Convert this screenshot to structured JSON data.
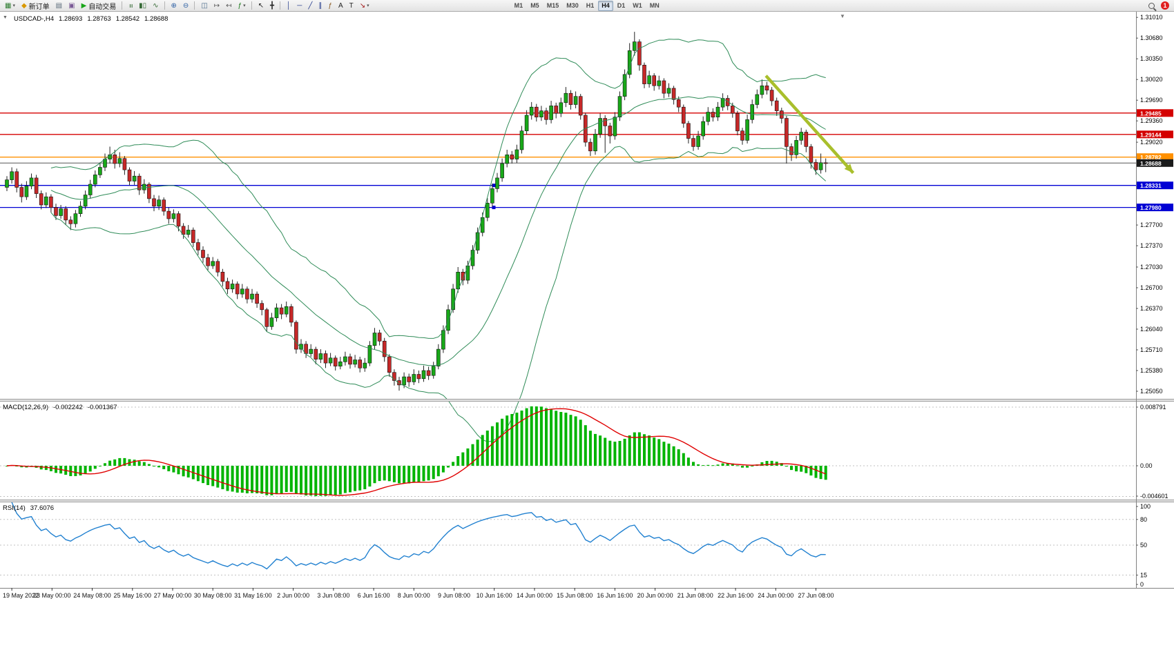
{
  "toolbar": {
    "items": [
      {
        "name": "new-chart",
        "glyph": "▦",
        "color": "#2f7d32",
        "caret": true
      },
      {
        "name": "new-order",
        "glyph": "◆",
        "color": "#d99800",
        "label": "新订单"
      },
      {
        "name": "print",
        "glyph": "▤",
        "color": "#5a6b7a"
      },
      {
        "name": "profile",
        "glyph": "▣",
        "color": "#7a5a96"
      },
      {
        "name": "autotrade",
        "glyph": "▶",
        "color": "#19a519",
        "label": "自动交易"
      },
      {
        "type": "sep"
      },
      {
        "name": "chart-bars",
        "glyph": "≡",
        "rot": true,
        "color": "#356a35"
      },
      {
        "name": "chart-candles",
        "glyph": "▮▯",
        "color": "#356a35"
      },
      {
        "name": "chart-line",
        "glyph": "∿",
        "color": "#356a35"
      },
      {
        "type": "sep"
      },
      {
        "name": "zoom-in",
        "glyph": "⊕",
        "color": "#2b5fa3"
      },
      {
        "name": "zoom-out",
        "glyph": "⊖",
        "color": "#2b5fa3"
      },
      {
        "type": "sep"
      },
      {
        "name": "tile-windows",
        "glyph": "◫",
        "color": "#4a6b8a"
      },
      {
        "name": "auto-scroll",
        "glyph": "↦",
        "color": "#555555"
      },
      {
        "name": "chart-shift",
        "glyph": "↤",
        "color": "#555555"
      },
      {
        "name": "indicators",
        "glyph": "ƒ",
        "color": "#1a7a1a",
        "caret": true
      },
      {
        "type": "sep"
      },
      {
        "name": "cursor",
        "glyph": "↖",
        "color": "#222222"
      },
      {
        "name": "crosshair",
        "glyph": "╋",
        "color": "#222222"
      },
      {
        "type": "sep"
      },
      {
        "name": "vertical-line",
        "glyph": "│",
        "color": "#20388a"
      },
      {
        "name": "horizontal-line",
        "glyph": "─",
        "color": "#20388a"
      },
      {
        "name": "trendline",
        "glyph": "╱",
        "color": "#20388a"
      },
      {
        "name": "channel",
        "glyph": "∥",
        "color": "#20388a"
      },
      {
        "name": "fibonacci",
        "glyph": "ƒ",
        "color": "#8a5a20"
      },
      {
        "name": "text",
        "glyph": "A",
        "color": "#222222"
      },
      {
        "name": "label",
        "glyph": "T",
        "color": "#222222"
      },
      {
        "name": "arrows",
        "glyph": "↘",
        "color": "#a01010",
        "caret": true
      }
    ],
    "timeframes": [
      "M1",
      "M5",
      "M15",
      "M30",
      "H1",
      "H4",
      "D1",
      "W1",
      "MN"
    ],
    "active_timeframe": "H4",
    "notification_badge": "1"
  },
  "symbol_header": {
    "symbol": "USDCAD-,H4",
    "open": "1.28693",
    "high": "1.28763",
    "low": "1.28542",
    "close": "1.28688"
  },
  "macd_header": {
    "name": "MACD(12,26,9)",
    "main": "-0.002242",
    "signal": "-0.001367",
    "axis": [
      {
        "text": "0.008791",
        "value": 0.008791
      },
      {
        "text": "0.00",
        "value": 0
      },
      {
        "text": "-0.004601",
        "value": -0.004601
      }
    ]
  },
  "rsi_header": {
    "name": "RSI(14)",
    "value": "37.6076",
    "axis": [
      {
        "text": "100",
        "value": 100
      },
      {
        "text": "80",
        "value": 80,
        "line": true
      },
      {
        "text": "50",
        "value": 50,
        "line": true
      },
      {
        "text": "15",
        "value": 15,
        "line": true
      },
      {
        "text": "0",
        "value": 0
      }
    ]
  },
  "colors": {
    "candle_up": "#18a818",
    "candle_down": "#c62828",
    "wick": "#222222",
    "bollinger": "#2e8b57",
    "macd_hist": "#00b400",
    "macd_signal": "#e00000",
    "rsi_line": "#2080d0",
    "level_red": "#d40000",
    "level_orange": "#ff9000",
    "level_blue": "#0000d4",
    "bid_line": "#1a1a1a"
  },
  "chart_data": {
    "type": "candlestick",
    "symbol": "USDCAD-",
    "timeframe": "H4",
    "ohlc_display": [
      1.28693,
      1.28763,
      1.28542,
      1.28688
    ],
    "y_axis": {
      "min": 1.2493,
      "max": 1.311,
      "tick_interval": 0.0033,
      "labels": [
        "1.31010",
        "1.30680",
        "1.30350",
        "1.30020",
        "1.29690",
        "1.29360",
        "1.29020",
        "1.27700",
        "1.27370",
        "1.27030",
        "1.26700",
        "1.26370",
        "1.26040",
        "1.25710",
        "1.25380",
        "1.25050"
      ]
    },
    "x_axis_labels": [
      "19 May 2022",
      "23 May 00:00",
      "24 May 08:00",
      "25 May 16:00",
      "27 May 00:00",
      "30 May 08:00",
      "31 May 16:00",
      "2 Jun 00:00",
      "3 Jun 08:00",
      "6 Jun 16:00",
      "8 Jun 00:00",
      "9 Jun 08:00",
      "10 Jun 16:00",
      "14 Jun 00:00",
      "15 Jun 08:00",
      "16 Jun 16:00",
      "20 Jun 00:00",
      "21 Jun 08:00",
      "22 Jun 16:00",
      "24 Jun 00:00",
      "27 Jun 08:00"
    ],
    "overlays": [
      {
        "name": "Bollinger Bands",
        "period": 20,
        "deviation": 2
      }
    ],
    "horizontal_levels": [
      {
        "label": "1.29485",
        "price": 1.29485,
        "color": "#d40000"
      },
      {
        "label": "1.29144",
        "price": 1.29144,
        "color": "#d40000"
      },
      {
        "label": "1.28782",
        "price": 1.28782,
        "color": "#ff9000"
      },
      {
        "label": "1.28688",
        "price": 1.28688,
        "color": "#1a1a1a",
        "current": true
      },
      {
        "label": "1.28331",
        "price": 1.28331,
        "color": "#0000d4",
        "handle": true
      },
      {
        "label": "1.27980",
        "price": 1.2798,
        "color": "#0000d4",
        "handle": true
      }
    ],
    "indicators": [
      {
        "name": "MACD",
        "params": "12,26,9",
        "current_values": [
          -0.002242,
          -0.001367
        ],
        "axis_range": [
          0.008791,
          -0.004601
        ]
      },
      {
        "name": "RSI",
        "params": "14",
        "current_value": 37.6076,
        "levels": [
          80,
          50,
          15
        ]
      }
    ],
    "trend_arrow": {
      "from": {
        "bar": 154.8,
        "price": 1.3008
      },
      "to": {
        "bar": 172.6,
        "price": 1.2853
      },
      "color": "#a9bf2c"
    },
    "candles": [
      [
        1.283,
        1.2848,
        1.2824,
        1.2842
      ],
      [
        1.2842,
        1.2862,
        1.2836,
        1.2855
      ],
      [
        1.2855,
        1.286,
        1.2822,
        1.283
      ],
      [
        1.283,
        1.2836,
        1.2806,
        1.2815
      ],
      [
        1.2815,
        1.284,
        1.281,
        1.2832
      ],
      [
        1.2832,
        1.2852,
        1.2827,
        1.2845
      ],
      [
        1.2845,
        1.285,
        1.2813,
        1.282
      ],
      [
        1.282,
        1.2825,
        1.2795,
        1.2802
      ],
      [
        1.2802,
        1.2822,
        1.2797,
        1.2815
      ],
      [
        1.2815,
        1.2819,
        1.279,
        1.2798
      ],
      [
        1.2798,
        1.2804,
        1.2778,
        1.2785
      ],
      [
        1.2785,
        1.2802,
        1.278,
        1.2796
      ],
      [
        1.2796,
        1.28,
        1.277,
        1.2778
      ],
      [
        1.2778,
        1.2784,
        1.2762,
        1.2772
      ],
      [
        1.2772,
        1.2794,
        1.2766,
        1.2788
      ],
      [
        1.2788,
        1.2808,
        1.2783,
        1.28
      ],
      [
        1.28,
        1.2825,
        1.2795,
        1.2818
      ],
      [
        1.2818,
        1.2842,
        1.2812,
        1.2835
      ],
      [
        1.2835,
        1.2857,
        1.283,
        1.285
      ],
      [
        1.285,
        1.287,
        1.2845,
        1.2862
      ],
      [
        1.2862,
        1.2884,
        1.2856,
        1.2875
      ],
      [
        1.2875,
        1.2895,
        1.2868,
        1.2882
      ],
      [
        1.2882,
        1.289,
        1.286,
        1.2868
      ],
      [
        1.2868,
        1.2886,
        1.2862,
        1.2876
      ],
      [
        1.2876,
        1.288,
        1.285,
        1.2858
      ],
      [
        1.2858,
        1.2862,
        1.2833,
        1.284
      ],
      [
        1.284,
        1.2856,
        1.2834,
        1.2848
      ],
      [
        1.2848,
        1.2852,
        1.2818,
        1.2826
      ],
      [
        1.2826,
        1.2843,
        1.282,
        1.2835
      ],
      [
        1.2835,
        1.2838,
        1.2805,
        1.2812
      ],
      [
        1.2812,
        1.2818,
        1.2792,
        1.28
      ],
      [
        1.28,
        1.2817,
        1.2794,
        1.281
      ],
      [
        1.281,
        1.2814,
        1.2785,
        1.2792
      ],
      [
        1.2792,
        1.2798,
        1.2772,
        1.278
      ],
      [
        1.278,
        1.2795,
        1.2774,
        1.2788
      ],
      [
        1.2788,
        1.2792,
        1.276,
        1.2768
      ],
      [
        1.2768,
        1.2773,
        1.2748,
        1.2755
      ],
      [
        1.2755,
        1.277,
        1.275,
        1.2762
      ],
      [
        1.2762,
        1.2766,
        1.2735,
        1.2742
      ],
      [
        1.2742,
        1.2748,
        1.2722,
        1.273
      ],
      [
        1.273,
        1.2736,
        1.271,
        1.2718
      ],
      [
        1.2718,
        1.2724,
        1.2698,
        1.2705
      ],
      [
        1.2705,
        1.2719,
        1.27,
        1.2712
      ],
      [
        1.2712,
        1.2716,
        1.2688,
        1.2695
      ],
      [
        1.2695,
        1.27,
        1.2672,
        1.268
      ],
      [
        1.268,
        1.2686,
        1.266,
        1.2668
      ],
      [
        1.2668,
        1.2683,
        1.2662,
        1.2676
      ],
      [
        1.2676,
        1.268,
        1.2652,
        1.266
      ],
      [
        1.266,
        1.2676,
        1.2654,
        1.2668
      ],
      [
        1.2668,
        1.2672,
        1.2645,
        1.2652
      ],
      [
        1.2652,
        1.2668,
        1.2646,
        1.266
      ],
      [
        1.266,
        1.2664,
        1.2638,
        1.2645
      ],
      [
        1.2645,
        1.265,
        1.2626,
        1.2635
      ],
      [
        1.2635,
        1.2638,
        1.26,
        1.2608
      ],
      [
        1.2608,
        1.263,
        1.2603,
        1.2622
      ],
      [
        1.2622,
        1.2645,
        1.2616,
        1.2638
      ],
      [
        1.2638,
        1.2644,
        1.262,
        1.2628
      ],
      [
        1.2628,
        1.2648,
        1.2623,
        1.264
      ],
      [
        1.264,
        1.2644,
        1.2608,
        1.2615
      ],
      [
        1.2615,
        1.2618,
        1.2565,
        1.2572
      ],
      [
        1.2572,
        1.2588,
        1.2566,
        1.258
      ],
      [
        1.258,
        1.2585,
        1.2558,
        1.2565
      ],
      [
        1.2565,
        1.258,
        1.256,
        1.2572
      ],
      [
        1.2572,
        1.2576,
        1.2548,
        1.2556
      ],
      [
        1.2556,
        1.2572,
        1.255,
        1.2565
      ],
      [
        1.2565,
        1.257,
        1.2542,
        1.255
      ],
      [
        1.255,
        1.2566,
        1.2545,
        1.2558
      ],
      [
        1.2558,
        1.2562,
        1.2538,
        1.2545
      ],
      [
        1.2545,
        1.256,
        1.254,
        1.2552
      ],
      [
        1.2552,
        1.2568,
        1.2546,
        1.256
      ],
      [
        1.256,
        1.2565,
        1.2541,
        1.2548
      ],
      [
        1.2548,
        1.2563,
        1.2543,
        1.2555
      ],
      [
        1.2555,
        1.256,
        1.2535,
        1.2542
      ],
      [
        1.2542,
        1.2558,
        1.2536,
        1.255
      ],
      [
        1.255,
        1.2585,
        1.2545,
        1.2578
      ],
      [
        1.2578,
        1.2606,
        1.2572,
        1.2598
      ],
      [
        1.2598,
        1.2603,
        1.2578,
        1.2585
      ],
      [
        1.2585,
        1.259,
        1.2552,
        1.256
      ],
      [
        1.256,
        1.2564,
        1.2528,
        1.2535
      ],
      [
        1.2535,
        1.254,
        1.2514,
        1.2522
      ],
      [
        1.2522,
        1.2528,
        1.2506,
        1.2515
      ],
      [
        1.2515,
        1.2535,
        1.251,
        1.2528
      ],
      [
        1.2528,
        1.2533,
        1.2512,
        1.252
      ],
      [
        1.252,
        1.254,
        1.2515,
        1.2532
      ],
      [
        1.2532,
        1.2538,
        1.2518,
        1.2525
      ],
      [
        1.2525,
        1.2546,
        1.252,
        1.2538
      ],
      [
        1.2538,
        1.2544,
        1.2523,
        1.253
      ],
      [
        1.253,
        1.2552,
        1.2525,
        1.2545
      ],
      [
        1.2545,
        1.258,
        1.254,
        1.2572
      ],
      [
        1.2572,
        1.261,
        1.2566,
        1.2602
      ],
      [
        1.2602,
        1.2643,
        1.2596,
        1.2635
      ],
      [
        1.2635,
        1.2676,
        1.263,
        1.2668
      ],
      [
        1.2668,
        1.2703,
        1.2662,
        1.2695
      ],
      [
        1.2695,
        1.27,
        1.2674,
        1.2682
      ],
      [
        1.2682,
        1.2713,
        1.2676,
        1.2705
      ],
      [
        1.2705,
        1.2738,
        1.2699,
        1.273
      ],
      [
        1.273,
        1.2766,
        1.2724,
        1.2758
      ],
      [
        1.2758,
        1.279,
        1.2752,
        1.2782
      ],
      [
        1.2782,
        1.2813,
        1.2776,
        1.2805
      ],
      [
        1.2805,
        1.2836,
        1.2799,
        1.2828
      ],
      [
        1.2828,
        1.2853,
        1.2822,
        1.2845
      ],
      [
        1.2845,
        1.2876,
        1.2839,
        1.2868
      ],
      [
        1.2868,
        1.289,
        1.2862,
        1.2882
      ],
      [
        1.2882,
        1.2888,
        1.2868,
        1.2875
      ],
      [
        1.2875,
        1.2898,
        1.2869,
        1.289
      ],
      [
        1.289,
        1.2928,
        1.2884,
        1.292
      ],
      [
        1.292,
        1.2953,
        1.2914,
        1.2945
      ],
      [
        1.2945,
        1.2966,
        1.2938,
        1.2958
      ],
      [
        1.2958,
        1.2963,
        1.2935,
        1.2942
      ],
      [
        1.2942,
        1.296,
        1.2936,
        1.2952
      ],
      [
        1.2952,
        1.2957,
        1.293,
        1.2938
      ],
      [
        1.2938,
        1.2968,
        1.2932,
        1.296
      ],
      [
        1.296,
        1.2965,
        1.294,
        1.2948
      ],
      [
        1.2948,
        1.2973,
        1.2942,
        1.2965
      ],
      [
        1.2965,
        1.299,
        1.2958,
        1.298
      ],
      [
        1.298,
        1.2985,
        1.2954,
        1.2962
      ],
      [
        1.2962,
        1.2983,
        1.2956,
        1.2975
      ],
      [
        1.2975,
        1.2979,
        1.2938,
        1.2945
      ],
      [
        1.2945,
        1.2949,
        1.2895,
        1.2902
      ],
      [
        1.2902,
        1.2908,
        1.288,
        1.2888
      ],
      [
        1.2888,
        1.2923,
        1.2882,
        1.2915
      ],
      [
        1.2915,
        1.2948,
        1.2909,
        1.294
      ],
      [
        1.294,
        1.2945,
        1.2885,
        1.2928
      ],
      [
        1.2928,
        1.2933,
        1.29,
        1.2912
      ],
      [
        1.2912,
        1.295,
        1.2906,
        1.2942
      ],
      [
        1.2942,
        1.2983,
        1.2936,
        1.2975
      ],
      [
        1.2975,
        1.3018,
        1.2969,
        1.301
      ],
      [
        1.301,
        1.306,
        1.3004,
        1.3048
      ],
      [
        1.3048,
        1.3078,
        1.304,
        1.3062
      ],
      [
        1.3062,
        1.3066,
        1.3016,
        1.3025
      ],
      [
        1.3025,
        1.3029,
        1.2988,
        1.2995
      ],
      [
        1.2995,
        1.3016,
        1.2989,
        1.3008
      ],
      [
        1.3008,
        1.3012,
        1.2984,
        1.2992
      ],
      [
        1.2992,
        1.3008,
        1.2986,
        1.3
      ],
      [
        1.3,
        1.3004,
        1.2972,
        1.298
      ],
      [
        1.298,
        1.2996,
        1.2974,
        1.2988
      ],
      [
        1.2988,
        1.2992,
        1.2962,
        1.297
      ],
      [
        1.297,
        1.2975,
        1.295,
        1.2958
      ],
      [
        1.2958,
        1.2962,
        1.2925,
        1.2932
      ],
      [
        1.2932,
        1.2936,
        1.29,
        1.2908
      ],
      [
        1.2908,
        1.2913,
        1.2888,
        1.2895
      ],
      [
        1.2895,
        1.292,
        1.289,
        1.2912
      ],
      [
        1.2912,
        1.2943,
        1.2906,
        1.2935
      ],
      [
        1.2935,
        1.2958,
        1.2929,
        1.295
      ],
      [
        1.295,
        1.2956,
        1.2935,
        1.2942
      ],
      [
        1.2942,
        1.2966,
        1.2936,
        1.2958
      ],
      [
        1.2958,
        1.298,
        1.2952,
        1.2972
      ],
      [
        1.2972,
        1.2977,
        1.2953,
        1.296
      ],
      [
        1.296,
        1.2965,
        1.2941,
        1.2948
      ],
      [
        1.2948,
        1.2952,
        1.2913,
        1.292
      ],
      [
        1.292,
        1.2925,
        1.2898,
        1.2905
      ],
      [
        1.2905,
        1.2946,
        1.29,
        1.2938
      ],
      [
        1.2938,
        1.297,
        1.2932,
        1.2962
      ],
      [
        1.2962,
        1.2986,
        1.2956,
        1.2978
      ],
      [
        1.2978,
        1.3002,
        1.2972,
        1.2992
      ],
      [
        1.2992,
        1.2998,
        1.2978,
        1.2985
      ],
      [
        1.2985,
        1.299,
        1.296,
        1.2968
      ],
      [
        1.2968,
        1.2973,
        1.2944,
        1.2952
      ],
      [
        1.2952,
        1.2957,
        1.2932,
        1.294
      ],
      [
        1.294,
        1.2944,
        1.2868,
        1.2895
      ],
      [
        1.2895,
        1.29,
        1.2872,
        1.2882
      ],
      [
        1.2882,
        1.2912,
        1.2876,
        1.2905
      ],
      [
        1.2905,
        1.2925,
        1.2898,
        1.2918
      ],
      [
        1.2918,
        1.2922,
        1.2886,
        1.2895
      ],
      [
        1.2895,
        1.2899,
        1.286,
        1.287
      ],
      [
        1.287,
        1.2875,
        1.285,
        1.2858
      ],
      [
        1.2858,
        1.2884,
        1.2852,
        1.28693
      ],
      [
        1.28693,
        1.28763,
        1.28542,
        1.28688
      ]
    ]
  }
}
